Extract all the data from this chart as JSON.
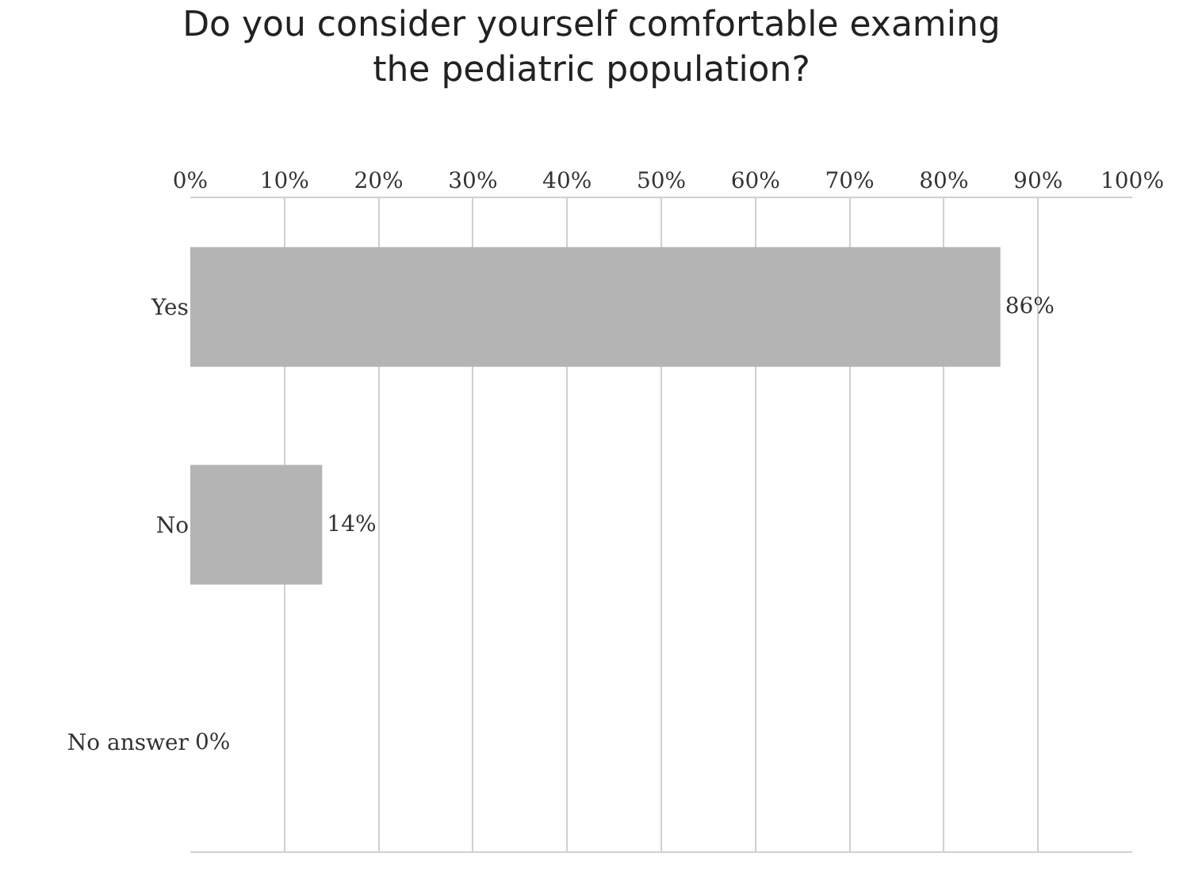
{
  "chart_data": {
    "type": "bar",
    "orientation": "horizontal",
    "title": "Do you consider yourself comfortable examing\nthe pediatric population?",
    "categories": [
      "Yes",
      "No",
      "No answer"
    ],
    "values": [
      86,
      14,
      0
    ],
    "value_labels": [
      "86%",
      "14%",
      "0%"
    ],
    "color": "#b4b4b4",
    "xlim": [
      0,
      100
    ],
    "xticks": [
      {
        "value": 0,
        "label": "0%"
      },
      {
        "value": 10,
        "label": "10%"
      },
      {
        "value": 20,
        "label": "20%"
      },
      {
        "value": 30,
        "label": "30%"
      },
      {
        "value": 40,
        "label": "40%"
      },
      {
        "value": 50,
        "label": "50%"
      },
      {
        "value": 60,
        "label": "60%"
      },
      {
        "value": 70,
        "label": "70%"
      },
      {
        "value": 80,
        "label": "80%"
      },
      {
        "value": 90,
        "label": "90%"
      },
      {
        "value": 100,
        "label": "100%"
      }
    ],
    "grid": "x"
  }
}
